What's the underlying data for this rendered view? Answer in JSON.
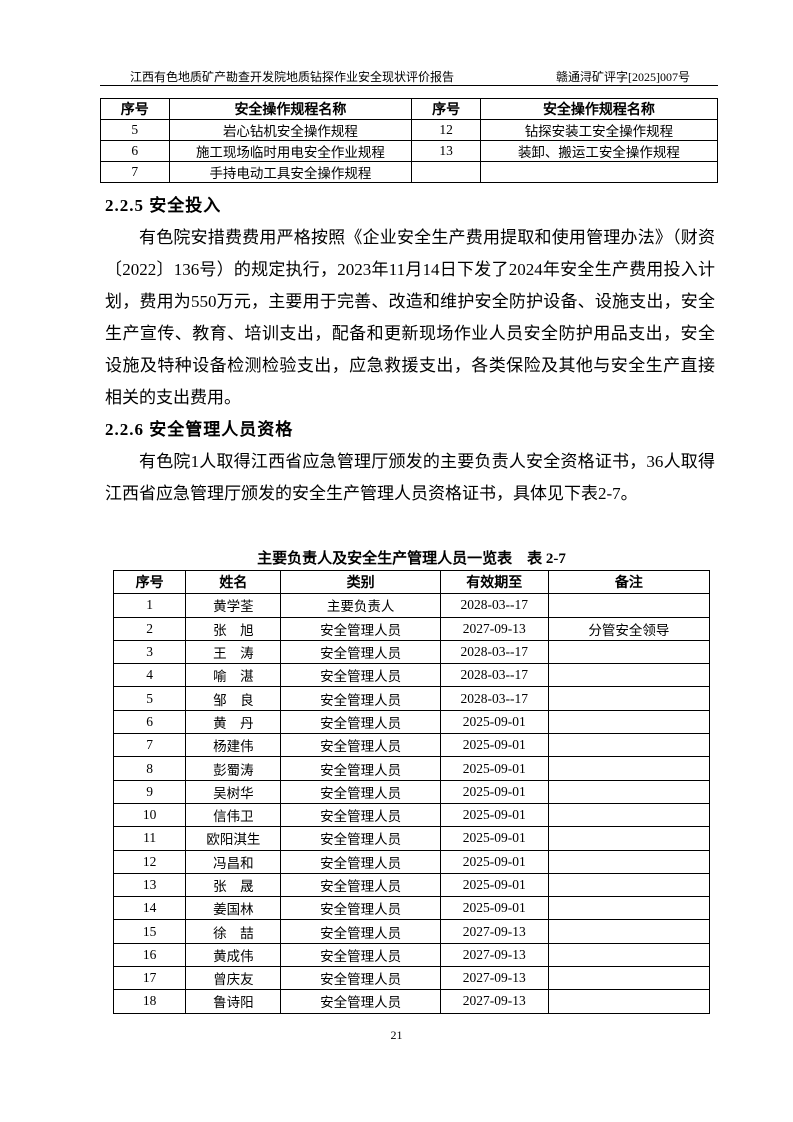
{
  "header": {
    "left": "江西有色地质矿产勘查开发院地质钻探作业安全现状评价报告",
    "right": "赣通浔矿评字[2025]007号"
  },
  "procedure_table": {
    "columns": [
      "序号",
      "安全操作规程名称",
      "序号",
      "安全操作规程名称"
    ],
    "rows": [
      [
        "5",
        "岩心钻机安全操作规程",
        "12",
        "钻探安装工安全操作规程"
      ],
      [
        "6",
        "施工现场临时用电安全作业规程",
        "13",
        "装卸、搬运工安全操作规程"
      ],
      [
        "7",
        "手持电动工具安全操作规程"
      ]
    ]
  },
  "sections": [
    {
      "heading": "2.2.5 安全投入",
      "paragraph": "有色院安措费费用严格按照《企业安全生产费用提取和使用管理办法》（财资〔2022〕136号）的规定执行，2023年11月14日下发了2024年安全生产费用投入计划，费用为550万元，主要用于完善、改造和维护安全防护设备、设施支出，安全生产宣传、教育、培训支出，配备和更新现场作业人员安全防护用品支出，安全设施及特种设备检测检验支出，应急救援支出，各类保险及其他与安全生产直接相关的支出费用。"
    },
    {
      "heading": "2.2.6 安全管理人员资格",
      "paragraph": "有色院1人取得江西省应急管理厅颁发的主要负责人安全资格证书，36人取得江西省应急管理厅颁发的安全生产管理人员资格证书，具体见下表2-7。"
    }
  ],
  "personnel_table": {
    "caption": "主要负责人及安全生产管理人员一览表　表 2-7",
    "columns": [
      "序号",
      "姓名",
      "类别",
      "有效期至",
      "备注"
    ],
    "rows": [
      [
        "1",
        "黄学荃",
        "主要负责人",
        "2028-03--17"
      ],
      [
        "2",
        "张　旭",
        "安全管理人员",
        "2027-09-13",
        "分管安全领导"
      ],
      [
        "3",
        "王　涛",
        "安全管理人员",
        "2028-03--17"
      ],
      [
        "4",
        "喻　湛",
        "安全管理人员",
        "2028-03--17"
      ],
      [
        "5",
        "邹　良",
        "安全管理人员",
        "2028-03--17"
      ],
      [
        "6",
        "黄　丹",
        "安全管理人员",
        "2025-09-01"
      ],
      [
        "7",
        "杨建伟",
        "安全管理人员",
        "2025-09-01"
      ],
      [
        "8",
        "彭蜀涛",
        "安全管理人员",
        "2025-09-01"
      ],
      [
        "9",
        "吴树华",
        "安全管理人员",
        "2025-09-01"
      ],
      [
        "10",
        "信伟卫",
        "安全管理人员",
        "2025-09-01"
      ],
      [
        "11",
        "欧阳淇生",
        "安全管理人员",
        "2025-09-01"
      ],
      [
        "12",
        "冯昌和",
        "安全管理人员",
        "2025-09-01"
      ],
      [
        "13",
        "张　晟",
        "安全管理人员",
        "2025-09-01"
      ],
      [
        "14",
        "姜国林",
        "安全管理人员",
        "2025-09-01"
      ],
      [
        "15",
        "徐　喆",
        "安全管理人员",
        "2027-09-13"
      ],
      [
        "16",
        "黄成伟",
        "安全管理人员",
        "2027-09-13"
      ],
      [
        "17",
        "曾庆友",
        "安全管理人员",
        "2027-09-13"
      ],
      [
        "18",
        "鲁诗阳",
        "安全管理人员",
        "2027-09-13"
      ]
    ]
  },
  "page_number": "21"
}
